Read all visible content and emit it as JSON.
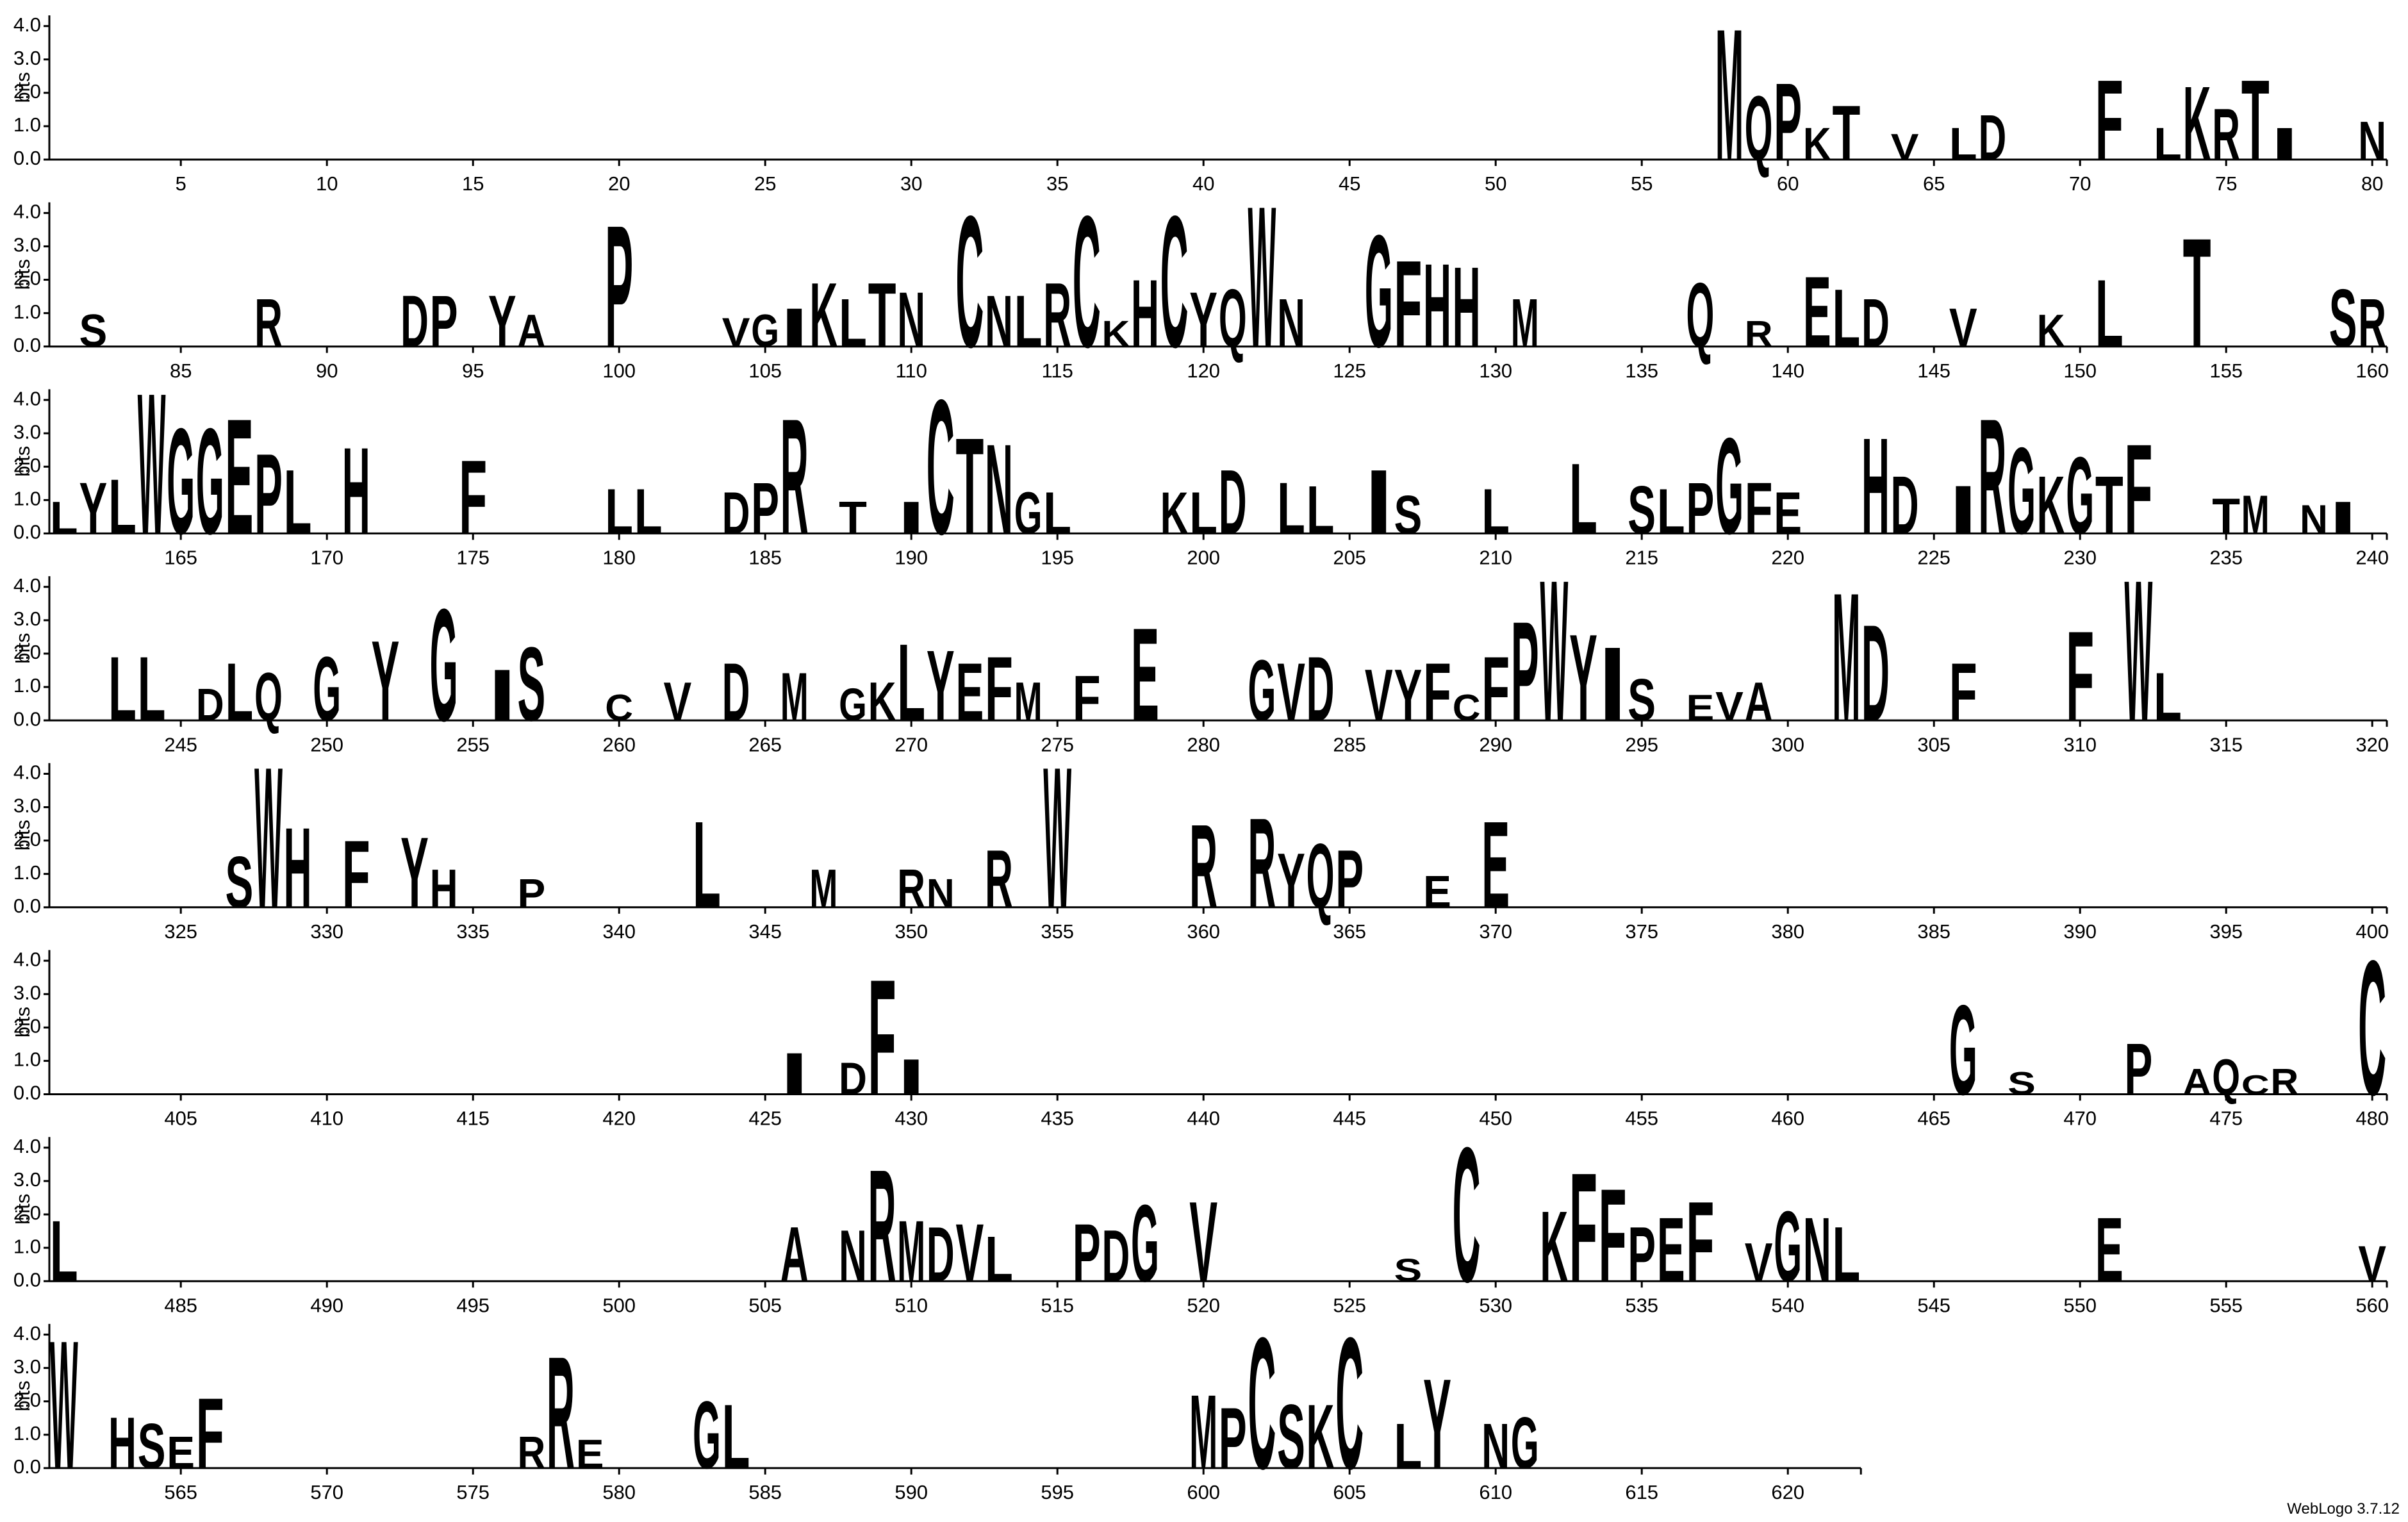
{
  "chart_data": {
    "type": "logo",
    "ylabel": "bits",
    "ylim": [
      0,
      4.32
    ],
    "yticks": [
      {
        "value": 0,
        "label": "0.0"
      },
      {
        "value": 1,
        "label": "1.0"
      },
      {
        "value": 2,
        "label": "2.0"
      },
      {
        "value": 3,
        "label": "3.0"
      },
      {
        "value": 4,
        "label": "4.0"
      }
    ],
    "color": "#000000",
    "letter_colors": {
      "C": "#ff0000"
    },
    "footer": "WebLogo 3.7.12",
    "rows": [
      {
        "xlim": [
          0.5,
          80.5
        ],
        "xticks": [
          5,
          10,
          15,
          20,
          25,
          30,
          35,
          40,
          45,
          50,
          55,
          60,
          65,
          70,
          75,
          80
        ],
        "x": [
          58,
          59,
          60,
          61,
          62,
          64,
          66,
          67,
          71,
          73,
          74,
          75,
          76,
          77,
          80
        ],
        "letters": [
          "M",
          "Q",
          "P",
          "K",
          "T",
          "V",
          "L",
          "D",
          "F",
          "L",
          "K",
          "R",
          "T",
          "I",
          "N"
        ],
        "values": [
          4.1,
          2.0,
          2.4,
          1.0,
          1.7,
          0.8,
          1.0,
          1.4,
          2.5,
          1.0,
          2.3,
          1.6,
          2.5,
          1.0,
          1.2
        ]
      },
      {
        "xlim": [
          80.5,
          160.5
        ],
        "xticks": [
          85,
          90,
          95,
          100,
          105,
          110,
          115,
          120,
          125,
          130,
          135,
          140,
          145,
          150,
          155,
          160
        ],
        "x": [
          82,
          88,
          93,
          94,
          96,
          97,
          100,
          104,
          105,
          106,
          107,
          108,
          109,
          110,
          112,
          113,
          114,
          115,
          116,
          117,
          118,
          119,
          120,
          121,
          122,
          123,
          126,
          127,
          128,
          129,
          131,
          137,
          139,
          141,
          142,
          143,
          146,
          149,
          151,
          154,
          159,
          160
        ],
        "letters": [
          "S",
          "R",
          "D",
          "P",
          "Y",
          "A",
          "P",
          "V",
          "G",
          "I",
          "K",
          "L",
          "T",
          "N",
          "C",
          "N",
          "L",
          "R",
          "C",
          "K",
          "H",
          "C",
          "Y",
          "Q",
          "W",
          "N",
          "G",
          "F",
          "H",
          "H",
          "M",
          "Q",
          "R",
          "E",
          "L",
          "D",
          "V",
          "K",
          "L",
          "T",
          "S",
          "R"
        ],
        "values": [
          1.0,
          1.5,
          1.6,
          1.6,
          1.6,
          1.0,
          3.8,
          0.9,
          1.0,
          1.2,
          2.0,
          1.5,
          2.0,
          1.7,
          4.1,
          1.6,
          1.6,
          2.0,
          4.1,
          0.8,
          2.1,
          4.1,
          1.7,
          1.8,
          4.4,
          1.5,
          3.5,
          2.7,
          2.6,
          2.5,
          1.5,
          2.0,
          0.8,
          2.2,
          1.8,
          1.5,
          1.2,
          1.0,
          2.1,
          3.4,
          1.8,
          1.5
        ]
      },
      {
        "xlim": [
          160.5,
          240.5
        ],
        "xticks": [
          165,
          170,
          175,
          180,
          185,
          190,
          195,
          200,
          205,
          210,
          215,
          220,
          225,
          230,
          235,
          240
        ],
        "x": [
          161,
          162,
          163,
          164,
          165,
          166,
          167,
          168,
          169,
          171,
          175,
          180,
          181,
          184,
          185,
          186,
          188,
          190,
          191,
          192,
          193,
          194,
          195,
          199,
          200,
          201,
          203,
          204,
          206,
          207,
          210,
          213,
          215,
          216,
          217,
          218,
          219,
          220,
          223,
          224,
          226,
          227,
          228,
          229,
          230,
          231,
          232,
          235,
          236,
          238,
          239
        ],
        "letters": [
          "L",
          "Y",
          "L",
          "W",
          "G",
          "G",
          "E",
          "P",
          "L",
          "H",
          "F",
          "L",
          "L",
          "D",
          "P",
          "R",
          "T",
          "I",
          "C",
          "T",
          "N",
          "G",
          "L",
          "K",
          "L",
          "D",
          "L",
          "L",
          "I",
          "S",
          "L",
          "L",
          "S",
          "L",
          "P",
          "G",
          "F",
          "E",
          "H",
          "D",
          "I",
          "R",
          "G",
          "K",
          "G",
          "T",
          "F",
          "T",
          "M",
          "N",
          "I"
        ],
        "values": [
          1.0,
          1.6,
          1.7,
          4.4,
          3.3,
          3.3,
          3.6,
          2.5,
          2.0,
          2.7,
          2.3,
          1.4,
          1.4,
          1.3,
          1.6,
          3.6,
          1.0,
          1.0,
          4.2,
          3.0,
          2.8,
          1.3,
          1.3,
          1.3,
          1.3,
          2.0,
          1.6,
          1.5,
          2.0,
          1.2,
          1.4,
          2.2,
          1.5,
          1.4,
          1.6,
          3.0,
          1.6,
          1.3,
          3.0,
          1.8,
          1.5,
          3.6,
          2.7,
          1.8,
          2.4,
          1.8,
          2.8,
          1.1,
          1.2,
          0.9,
          1.0
        ]
      },
      {
        "xlim": [
          240.5,
          320.5
        ],
        "xticks": [
          245,
          250,
          255,
          260,
          265,
          270,
          275,
          280,
          285,
          290,
          295,
          300,
          305,
          310,
          315,
          320
        ],
        "x": [
          243,
          244,
          246,
          247,
          248,
          250,
          252,
          254,
          256,
          257,
          260,
          262,
          264,
          266,
          268,
          269,
          270,
          271,
          272,
          273,
          274,
          276,
          278,
          282,
          283,
          284,
          286,
          287,
          288,
          289,
          290,
          291,
          292,
          293,
          294,
          295,
          297,
          298,
          299,
          302,
          303,
          306,
          310,
          312,
          313
        ],
        "letters": [
          "L",
          "L",
          "D",
          "L",
          "Q",
          "G",
          "Y",
          "G",
          "I",
          "S",
          "C",
          "V",
          "D",
          "M",
          "G",
          "K",
          "L",
          "Y",
          "E",
          "F",
          "M",
          "F",
          "E",
          "G",
          "V",
          "D",
          "V",
          "Y",
          "F",
          "C",
          "F",
          "P",
          "W",
          "Y",
          "I",
          "S",
          "E",
          "V",
          "A",
          "M",
          "D",
          "F",
          "F",
          "W",
          "L"
        ],
        "values": [
          2.0,
          2.0,
          1.0,
          1.8,
          1.5,
          2.0,
          2.5,
          3.5,
          1.6,
          2.3,
          0.8,
          1.2,
          1.8,
          1.5,
          1.0,
          1.2,
          2.4,
          2.2,
          1.8,
          2.0,
          1.2,
          1.4,
          2.9,
          1.9,
          1.8,
          2.0,
          1.6,
          1.6,
          1.8,
          0.8,
          2.0,
          3.1,
          4.4,
          2.7,
          2.3,
          1.3,
          0.8,
          0.9,
          1.2,
          4.0,
          3.0,
          1.8,
          2.8,
          4.4,
          1.5
        ]
      },
      {
        "xlim": [
          320.5,
          400.5
        ],
        "xticks": [
          325,
          330,
          335,
          340,
          345,
          350,
          355,
          360,
          365,
          370,
          375,
          380,
          385,
          390,
          395,
          400
        ],
        "x": [
          327,
          328,
          329,
          331,
          333,
          334,
          337,
          343,
          347,
          350,
          351,
          353,
          355,
          360,
          362,
          363,
          364,
          365,
          368,
          370
        ],
        "letters": [
          "S",
          "W",
          "H",
          "F",
          "Y",
          "H",
          "P",
          "L",
          "M",
          "R",
          "N",
          "R",
          "W",
          "R",
          "R",
          "Y",
          "Q",
          "P",
          "E",
          "E"
        ],
        "values": [
          1.6,
          4.4,
          2.5,
          2.1,
          2.2,
          1.2,
          0.9,
          2.7,
          1.2,
          1.2,
          0.9,
          1.8,
          4.4,
          2.6,
          2.8,
          1.7,
          2.0,
          1.8,
          1.0,
          2.7
        ]
      },
      {
        "xlim": [
          400.5,
          480.5
        ],
        "xticks": [
          405,
          410,
          415,
          420,
          425,
          430,
          435,
          440,
          445,
          450,
          455,
          460,
          465,
          470,
          475,
          480
        ],
        "x": [
          426,
          428,
          429,
          430,
          466,
          468,
          472,
          474,
          475,
          476,
          477,
          480
        ],
        "letters": [
          "I",
          "D",
          "F",
          "I",
          "G",
          "S",
          "P",
          "A",
          "Q",
          "C",
          "R",
          "C"
        ],
        "values": [
          1.3,
          1.0,
          3.6,
          1.1,
          2.8,
          0.7,
          1.6,
          0.8,
          1.1,
          0.6,
          0.8,
          4.2
        ]
      },
      {
        "xlim": [
          480.5,
          560.5
        ],
        "xticks": [
          485,
          490,
          495,
          500,
          505,
          510,
          515,
          520,
          525,
          530,
          535,
          540,
          545,
          550,
          555,
          560
        ],
        "x": [
          481,
          506,
          508,
          509,
          510,
          511,
          512,
          513,
          516,
          517,
          518,
          520,
          527,
          529,
          532,
          533,
          534,
          535,
          536,
          537,
          539,
          540,
          541,
          542,
          551,
          560
        ],
        "letters": [
          "L",
          "A",
          "N",
          "R",
          "M",
          "D",
          "V",
          "L",
          "P",
          "D",
          "G",
          "V",
          "S",
          "C",
          "K",
          "F",
          "F",
          "P",
          "E",
          "F",
          "V",
          "G",
          "N",
          "L",
          "E",
          "V"
        ],
        "values": [
          1.9,
          1.7,
          1.6,
          3.5,
          1.9,
          1.7,
          1.8,
          1.4,
          1.8,
          1.6,
          2.4,
          2.5,
          0.7,
          4.2,
          2.2,
          3.4,
          2.9,
          1.7,
          2.0,
          2.5,
          1.2,
          2.2,
          2.0,
          1.7,
          2.0,
          1.1
        ]
      },
      {
        "xlim": [
          560.5,
          622.5
        ],
        "xticks": [
          565,
          570,
          575,
          580,
          585,
          590,
          595,
          600,
          605,
          610,
          615,
          620
        ],
        "x": [
          561,
          563,
          564,
          565,
          566,
          577,
          578,
          579,
          583,
          584,
          600,
          601,
          602,
          603,
          604,
          605,
          607,
          608,
          610,
          611
        ],
        "letters": [
          "W",
          "H",
          "S",
          "E",
          "F",
          "R",
          "R",
          "E",
          "G",
          "L",
          "M",
          "P",
          "C",
          "S",
          "K",
          "C",
          "L",
          "Y",
          "N",
          "G"
        ],
        "values": [
          4.0,
          1.6,
          1.4,
          1.0,
          2.2,
          1.0,
          3.5,
          0.9,
          2.1,
          2.0,
          2.3,
          1.9,
          4.1,
          2.0,
          2.0,
          4.1,
          1.4,
          2.8,
          1.4,
          1.6
        ]
      }
    ]
  }
}
